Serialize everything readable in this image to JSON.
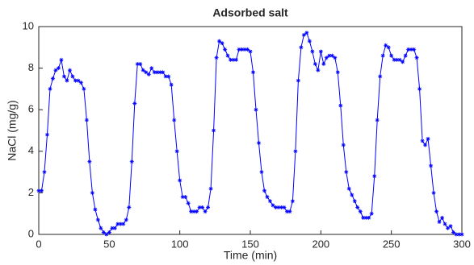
{
  "chart_data": {
    "type": "line",
    "title": "Adsorbed salt",
    "x_label": "Time (min)",
    "y_label": "NaCl (mg/g)",
    "x": [
      0,
      2,
      4,
      6,
      8,
      10,
      12,
      14,
      16,
      18,
      20,
      22,
      24,
      26,
      28,
      30,
      32,
      34,
      36,
      38,
      40,
      42,
      44,
      46,
      48,
      50,
      52,
      54,
      56,
      58,
      60,
      62,
      64,
      66,
      68,
      70,
      72,
      74,
      76,
      78,
      80,
      82,
      84,
      86,
      88,
      90,
      92,
      94,
      96,
      98,
      100,
      102,
      104,
      106,
      108,
      110,
      112,
      114,
      116,
      118,
      120,
      122,
      124,
      126,
      128,
      130,
      132,
      134,
      136,
      138,
      140,
      142,
      144,
      146,
      148,
      150,
      152,
      154,
      156,
      158,
      160,
      162,
      164,
      166,
      168,
      170,
      172,
      174,
      176,
      178,
      180,
      182,
      184,
      186,
      188,
      190,
      192,
      194,
      196,
      198,
      200,
      202,
      204,
      206,
      208,
      210,
      212,
      214,
      216,
      218,
      220,
      222,
      224,
      226,
      228,
      230,
      232,
      234,
      236,
      238,
      240,
      242,
      244,
      246,
      248,
      250,
      252,
      254,
      256,
      258,
      260,
      262,
      264,
      266,
      268,
      270,
      272,
      274,
      276,
      278,
      280,
      282,
      284,
      286,
      288,
      290,
      292,
      294,
      296,
      298,
      300
    ],
    "series": [
      {
        "color": "#0000ff",
        "values": [
          2.1,
          2.1,
          3.0,
          4.8,
          7.0,
          7.5,
          7.9,
          8.0,
          8.4,
          7.6,
          7.4,
          7.9,
          7.6,
          7.4,
          7.4,
          7.3,
          7.0,
          5.5,
          3.5,
          2.0,
          1.2,
          0.7,
          0.3,
          0.1,
          0.0,
          0.1,
          0.3,
          0.3,
          0.5,
          0.5,
          0.5,
          0.7,
          1.3,
          3.5,
          6.3,
          8.2,
          8.2,
          7.9,
          7.8,
          7.7,
          8.0,
          7.8,
          7.8,
          7.8,
          7.8,
          7.6,
          7.6,
          7.2,
          5.5,
          4.0,
          2.6,
          1.8,
          1.8,
          1.5,
          1.1,
          1.1,
          1.1,
          1.3,
          1.3,
          1.1,
          1.3,
          2.2,
          5.0,
          8.5,
          9.3,
          9.2,
          8.9,
          8.6,
          8.4,
          8.4,
          8.4,
          8.9,
          8.9,
          8.9,
          8.9,
          8.8,
          7.8,
          6.0,
          4.4,
          3.0,
          2.1,
          1.8,
          1.6,
          1.4,
          1.3,
          1.3,
          1.3,
          1.3,
          1.1,
          1.1,
          1.6,
          4.0,
          7.4,
          9.0,
          9.6,
          9.7,
          9.3,
          8.8,
          8.2,
          7.9,
          8.8,
          8.2,
          8.5,
          8.6,
          8.6,
          8.5,
          7.8,
          6.2,
          4.3,
          3.0,
          2.2,
          1.9,
          1.6,
          1.3,
          1.1,
          0.8,
          0.8,
          0.8,
          1.0,
          2.8,
          5.5,
          7.6,
          8.6,
          9.1,
          9.0,
          8.6,
          8.4,
          8.4,
          8.4,
          8.3,
          8.6,
          8.9,
          8.9,
          8.9,
          8.5,
          7.0,
          4.5,
          4.3,
          4.6,
          3.3,
          2.0,
          1.1,
          0.6,
          0.8,
          0.5,
          0.3,
          0.4,
          0.1,
          0.0,
          0.0,
          0.0
        ]
      }
    ],
    "xlim": [
      0,
      300
    ],
    "xticks": [
      0,
      50,
      100,
      150,
      200,
      250,
      300
    ],
    "ylim": [
      0,
      10
    ],
    "yticks": [
      0,
      2,
      4,
      6,
      8,
      10
    ],
    "grid": false
  }
}
